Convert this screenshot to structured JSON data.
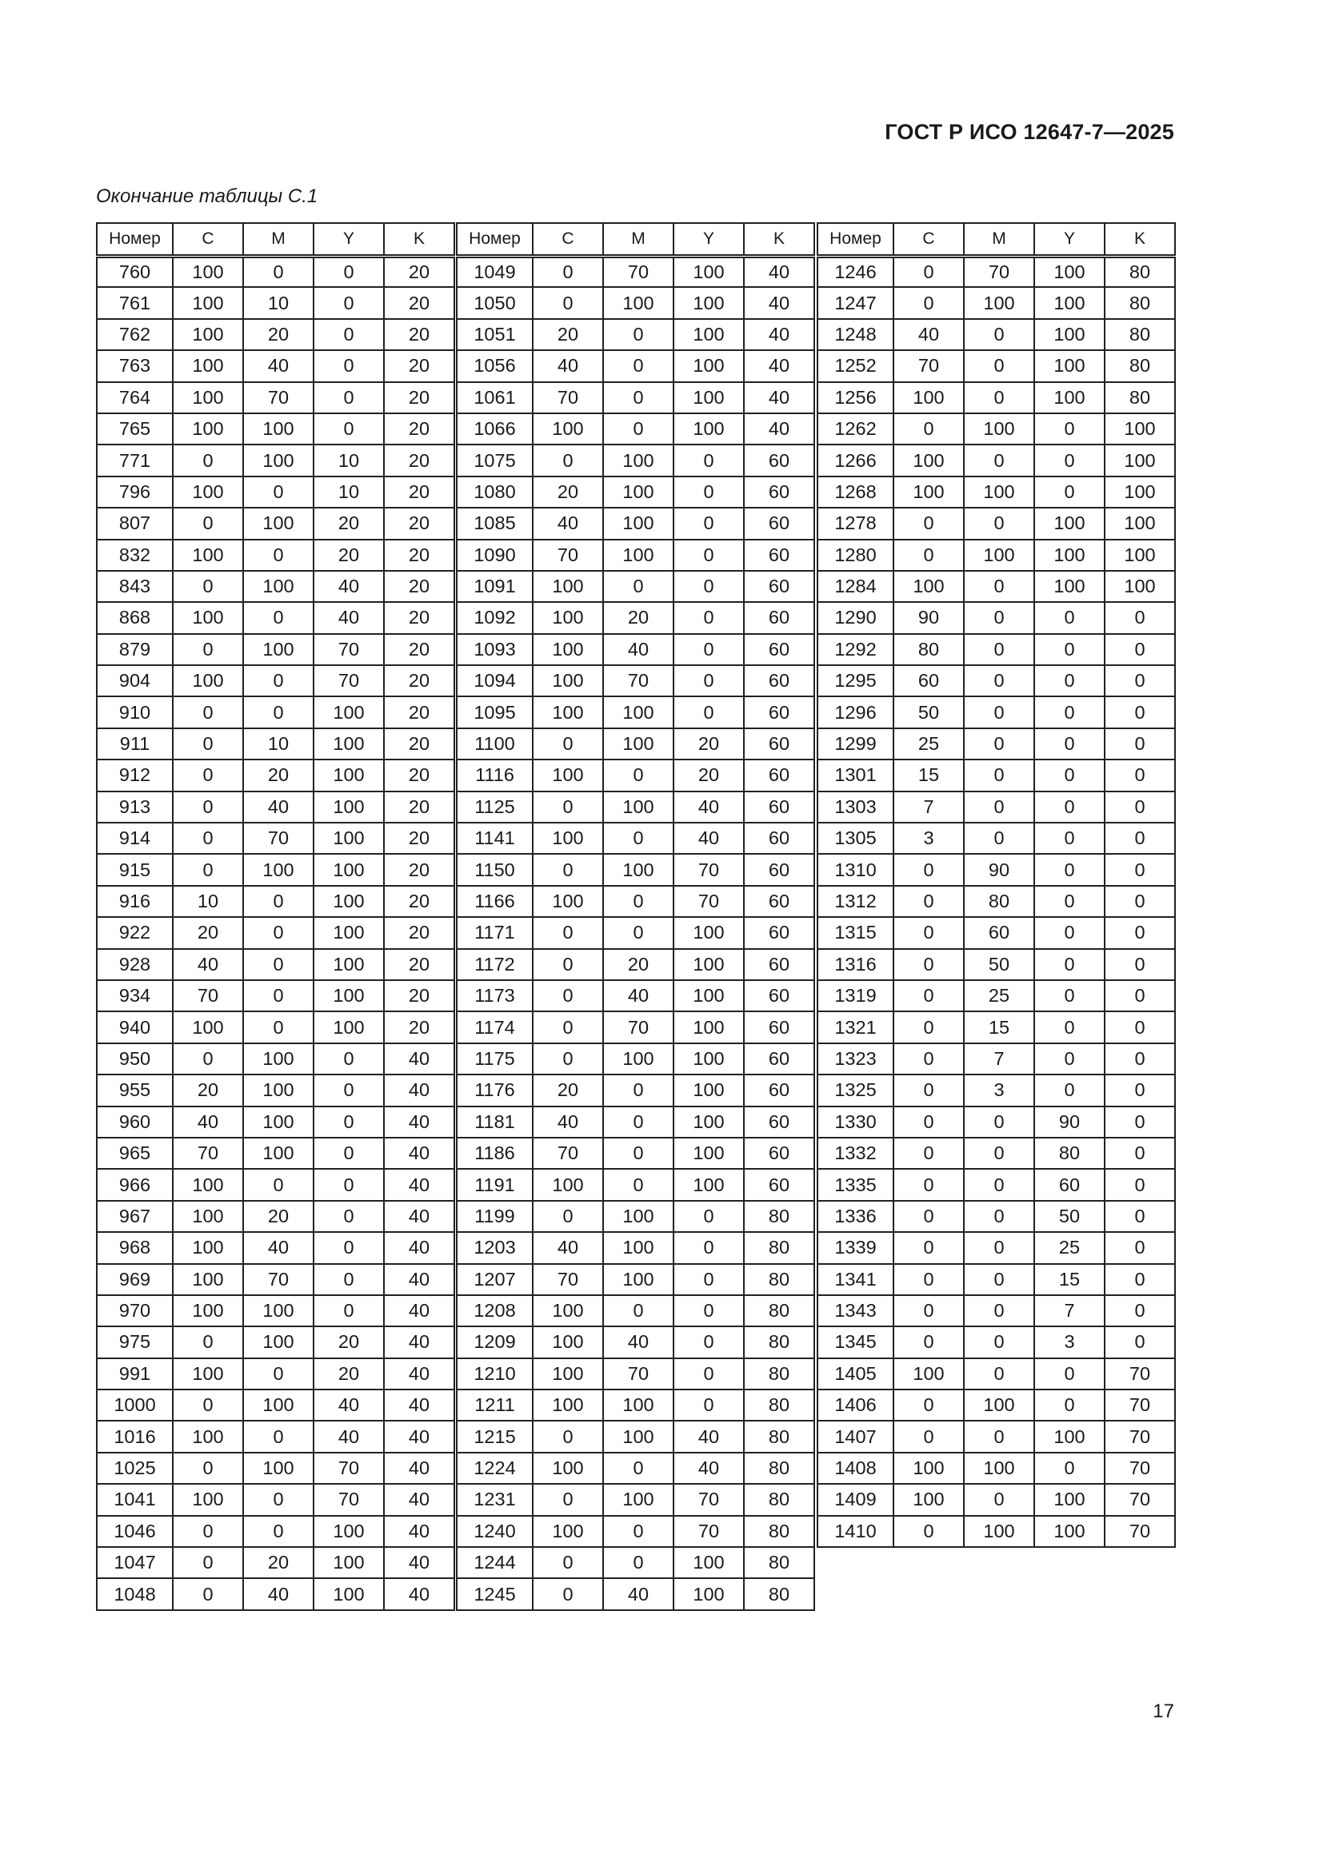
{
  "header": {
    "doc_title": "ГОСТ Р ИСО 12647-7—2025"
  },
  "caption": "Окончание таблицы С.1",
  "columns": [
    "Номер",
    "C",
    "M",
    "Y",
    "K"
  ],
  "groups": [
    [
      [
        "760",
        "100",
        "0",
        "0",
        "20"
      ],
      [
        "761",
        "100",
        "10",
        "0",
        "20"
      ],
      [
        "762",
        "100",
        "20",
        "0",
        "20"
      ],
      [
        "763",
        "100",
        "40",
        "0",
        "20"
      ],
      [
        "764",
        "100",
        "70",
        "0",
        "20"
      ],
      [
        "765",
        "100",
        "100",
        "0",
        "20"
      ],
      [
        "771",
        "0",
        "100",
        "10",
        "20"
      ],
      [
        "796",
        "100",
        "0",
        "10",
        "20"
      ],
      [
        "807",
        "0",
        "100",
        "20",
        "20"
      ],
      [
        "832",
        "100",
        "0",
        "20",
        "20"
      ],
      [
        "843",
        "0",
        "100",
        "40",
        "20"
      ],
      [
        "868",
        "100",
        "0",
        "40",
        "20"
      ],
      [
        "879",
        "0",
        "100",
        "70",
        "20"
      ],
      [
        "904",
        "100",
        "0",
        "70",
        "20"
      ],
      [
        "910",
        "0",
        "0",
        "100",
        "20"
      ],
      [
        "911",
        "0",
        "10",
        "100",
        "20"
      ],
      [
        "912",
        "0",
        "20",
        "100",
        "20"
      ],
      [
        "913",
        "0",
        "40",
        "100",
        "20"
      ],
      [
        "914",
        "0",
        "70",
        "100",
        "20"
      ],
      [
        "915",
        "0",
        "100",
        "100",
        "20"
      ],
      [
        "916",
        "10",
        "0",
        "100",
        "20"
      ],
      [
        "922",
        "20",
        "0",
        "100",
        "20"
      ],
      [
        "928",
        "40",
        "0",
        "100",
        "20"
      ],
      [
        "934",
        "70",
        "0",
        "100",
        "20"
      ],
      [
        "940",
        "100",
        "0",
        "100",
        "20"
      ],
      [
        "950",
        "0",
        "100",
        "0",
        "40"
      ],
      [
        "955",
        "20",
        "100",
        "0",
        "40"
      ],
      [
        "960",
        "40",
        "100",
        "0",
        "40"
      ],
      [
        "965",
        "70",
        "100",
        "0",
        "40"
      ],
      [
        "966",
        "100",
        "0",
        "0",
        "40"
      ],
      [
        "967",
        "100",
        "20",
        "0",
        "40"
      ],
      [
        "968",
        "100",
        "40",
        "0",
        "40"
      ],
      [
        "969",
        "100",
        "70",
        "0",
        "40"
      ],
      [
        "970",
        "100",
        "100",
        "0",
        "40"
      ],
      [
        "975",
        "0",
        "100",
        "20",
        "40"
      ],
      [
        "991",
        "100",
        "0",
        "20",
        "40"
      ],
      [
        "1000",
        "0",
        "100",
        "40",
        "40"
      ],
      [
        "1016",
        "100",
        "0",
        "40",
        "40"
      ],
      [
        "1025",
        "0",
        "100",
        "70",
        "40"
      ],
      [
        "1041",
        "100",
        "0",
        "70",
        "40"
      ],
      [
        "1046",
        "0",
        "0",
        "100",
        "40"
      ],
      [
        "1047",
        "0",
        "20",
        "100",
        "40"
      ],
      [
        "1048",
        "0",
        "40",
        "100",
        "40"
      ]
    ],
    [
      [
        "1049",
        "0",
        "70",
        "100",
        "40"
      ],
      [
        "1050",
        "0",
        "100",
        "100",
        "40"
      ],
      [
        "1051",
        "20",
        "0",
        "100",
        "40"
      ],
      [
        "1056",
        "40",
        "0",
        "100",
        "40"
      ],
      [
        "1061",
        "70",
        "0",
        "100",
        "40"
      ],
      [
        "1066",
        "100",
        "0",
        "100",
        "40"
      ],
      [
        "1075",
        "0",
        "100",
        "0",
        "60"
      ],
      [
        "1080",
        "20",
        "100",
        "0",
        "60"
      ],
      [
        "1085",
        "40",
        "100",
        "0",
        "60"
      ],
      [
        "1090",
        "70",
        "100",
        "0",
        "60"
      ],
      [
        "1091",
        "100",
        "0",
        "0",
        "60"
      ],
      [
        "1092",
        "100",
        "20",
        "0",
        "60"
      ],
      [
        "1093",
        "100",
        "40",
        "0",
        "60"
      ],
      [
        "1094",
        "100",
        "70",
        "0",
        "60"
      ],
      [
        "1095",
        "100",
        "100",
        "0",
        "60"
      ],
      [
        "1100",
        "0",
        "100",
        "20",
        "60"
      ],
      [
        "1116",
        "100",
        "0",
        "20",
        "60"
      ],
      [
        "1125",
        "0",
        "100",
        "40",
        "60"
      ],
      [
        "1141",
        "100",
        "0",
        "40",
        "60"
      ],
      [
        "1150",
        "0",
        "100",
        "70",
        "60"
      ],
      [
        "1166",
        "100",
        "0",
        "70",
        "60"
      ],
      [
        "1171",
        "0",
        "0",
        "100",
        "60"
      ],
      [
        "1172",
        "0",
        "20",
        "100",
        "60"
      ],
      [
        "1173",
        "0",
        "40",
        "100",
        "60"
      ],
      [
        "1174",
        "0",
        "70",
        "100",
        "60"
      ],
      [
        "1175",
        "0",
        "100",
        "100",
        "60"
      ],
      [
        "1176",
        "20",
        "0",
        "100",
        "60"
      ],
      [
        "1181",
        "40",
        "0",
        "100",
        "60"
      ],
      [
        "1186",
        "70",
        "0",
        "100",
        "60"
      ],
      [
        "1191",
        "100",
        "0",
        "100",
        "60"
      ],
      [
        "1199",
        "0",
        "100",
        "0",
        "80"
      ],
      [
        "1203",
        "40",
        "100",
        "0",
        "80"
      ],
      [
        "1207",
        "70",
        "100",
        "0",
        "80"
      ],
      [
        "1208",
        "100",
        "0",
        "0",
        "80"
      ],
      [
        "1209",
        "100",
        "40",
        "0",
        "80"
      ],
      [
        "1210",
        "100",
        "70",
        "0",
        "80"
      ],
      [
        "1211",
        "100",
        "100",
        "0",
        "80"
      ],
      [
        "1215",
        "0",
        "100",
        "40",
        "80"
      ],
      [
        "1224",
        "100",
        "0",
        "40",
        "80"
      ],
      [
        "1231",
        "0",
        "100",
        "70",
        "80"
      ],
      [
        "1240",
        "100",
        "0",
        "70",
        "80"
      ],
      [
        "1244",
        "0",
        "0",
        "100",
        "80"
      ],
      [
        "1245",
        "0",
        "40",
        "100",
        "80"
      ]
    ],
    [
      [
        "1246",
        "0",
        "70",
        "100",
        "80"
      ],
      [
        "1247",
        "0",
        "100",
        "100",
        "80"
      ],
      [
        "1248",
        "40",
        "0",
        "100",
        "80"
      ],
      [
        "1252",
        "70",
        "0",
        "100",
        "80"
      ],
      [
        "1256",
        "100",
        "0",
        "100",
        "80"
      ],
      [
        "1262",
        "0",
        "100",
        "0",
        "100"
      ],
      [
        "1266",
        "100",
        "0",
        "0",
        "100"
      ],
      [
        "1268",
        "100",
        "100",
        "0",
        "100"
      ],
      [
        "1278",
        "0",
        "0",
        "100",
        "100"
      ],
      [
        "1280",
        "0",
        "100",
        "100",
        "100"
      ],
      [
        "1284",
        "100",
        "0",
        "100",
        "100"
      ],
      [
        "1290",
        "90",
        "0",
        "0",
        "0"
      ],
      [
        "1292",
        "80",
        "0",
        "0",
        "0"
      ],
      [
        "1295",
        "60",
        "0",
        "0",
        "0"
      ],
      [
        "1296",
        "50",
        "0",
        "0",
        "0"
      ],
      [
        "1299",
        "25",
        "0",
        "0",
        "0"
      ],
      [
        "1301",
        "15",
        "0",
        "0",
        "0"
      ],
      [
        "1303",
        "7",
        "0",
        "0",
        "0"
      ],
      [
        "1305",
        "3",
        "0",
        "0",
        "0"
      ],
      [
        "1310",
        "0",
        "90",
        "0",
        "0"
      ],
      [
        "1312",
        "0",
        "80",
        "0",
        "0"
      ],
      [
        "1315",
        "0",
        "60",
        "0",
        "0"
      ],
      [
        "1316",
        "0",
        "50",
        "0",
        "0"
      ],
      [
        "1319",
        "0",
        "25",
        "0",
        "0"
      ],
      [
        "1321",
        "0",
        "15",
        "0",
        "0"
      ],
      [
        "1323",
        "0",
        "7",
        "0",
        "0"
      ],
      [
        "1325",
        "0",
        "3",
        "0",
        "0"
      ],
      [
        "1330",
        "0",
        "0",
        "90",
        "0"
      ],
      [
        "1332",
        "0",
        "0",
        "80",
        "0"
      ],
      [
        "1335",
        "0",
        "0",
        "60",
        "0"
      ],
      [
        "1336",
        "0",
        "0",
        "50",
        "0"
      ],
      [
        "1339",
        "0",
        "0",
        "25",
        "0"
      ],
      [
        "1341",
        "0",
        "0",
        "15",
        "0"
      ],
      [
        "1343",
        "0",
        "0",
        "7",
        "0"
      ],
      [
        "1345",
        "0",
        "0",
        "3",
        "0"
      ],
      [
        "1405",
        "100",
        "0",
        "0",
        "70"
      ],
      [
        "1406",
        "0",
        "100",
        "0",
        "70"
      ],
      [
        "1407",
        "0",
        "0",
        "100",
        "70"
      ],
      [
        "1408",
        "100",
        "100",
        "0",
        "70"
      ],
      [
        "1409",
        "100",
        "0",
        "100",
        "70"
      ],
      [
        "1410",
        "0",
        "100",
        "100",
        "70"
      ]
    ]
  ],
  "footer": {
    "page_number": "17"
  }
}
